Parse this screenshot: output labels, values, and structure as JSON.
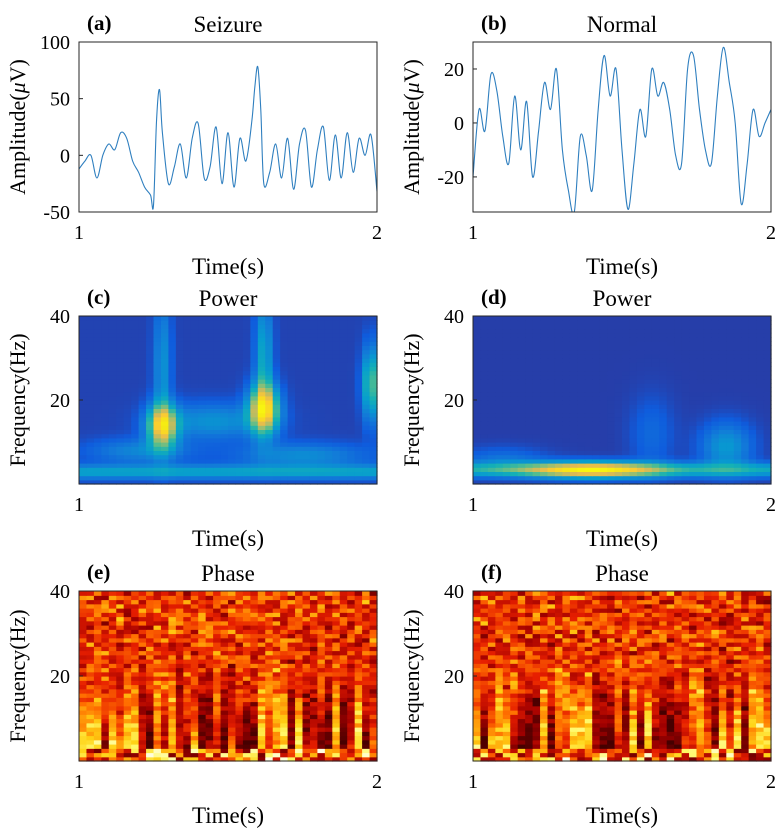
{
  "figure": {
    "panels": [
      {
        "id": "a",
        "letter": "(a)",
        "title": "Seizure",
        "xlabel": "Time(s)",
        "ylabel_prefix": "Amplitude(",
        "ylabel_mu": "μ",
        "ylabel_suffix": "V)",
        "xticks": [
          "1",
          "2"
        ],
        "yticks": [
          "100",
          "50",
          "0",
          "-50"
        ]
      },
      {
        "id": "b",
        "letter": "(b)",
        "title": "Normal",
        "xlabel": "Time(s)",
        "ylabel_prefix": "Amplitude(",
        "ylabel_mu": "μ",
        "ylabel_suffix": "V)",
        "xticks": [
          "1",
          "2"
        ],
        "yticks": [
          "20",
          "0",
          "-20"
        ]
      },
      {
        "id": "c",
        "letter": "(c)",
        "title": "Power",
        "xlabel": "Time(s)",
        "ylabel": "Frequency(Hz)",
        "xticks": [
          "1"
        ],
        "yticks": [
          "40",
          "20"
        ]
      },
      {
        "id": "d",
        "letter": "(d)",
        "title": "Power",
        "xlabel": "Time(s)",
        "ylabel": "Frequency(Hz)",
        "xticks": [
          "1",
          "2"
        ],
        "yticks": [
          "40",
          "20"
        ]
      },
      {
        "id": "e",
        "letter": "(e)",
        "title": "Phase",
        "xlabel": "Time(s)",
        "ylabel": "Frequency(Hz)",
        "xticks": [
          "1",
          "2"
        ],
        "yticks": [
          "40",
          "20"
        ]
      },
      {
        "id": "f",
        "letter": "(f)",
        "title": "Phase",
        "xlabel": "Time(s)",
        "ylabel": "Frequency(Hz)",
        "xticks": [
          "1",
          "2"
        ],
        "yticks": [
          "40",
          "20"
        ]
      }
    ]
  },
  "chart_data": [
    {
      "id": "a",
      "type": "line",
      "title": "Seizure",
      "xlabel": "Time(s)",
      "ylabel": "Amplitude(μV)",
      "xlim": [
        1,
        2
      ],
      "ylim": [
        -50,
        100
      ],
      "line_color": "#2f7fbf",
      "x": [
        1.0,
        1.02,
        1.04,
        1.06,
        1.08,
        1.1,
        1.12,
        1.14,
        1.16,
        1.18,
        1.2,
        1.22,
        1.24,
        1.25,
        1.26,
        1.27,
        1.28,
        1.3,
        1.32,
        1.34,
        1.36,
        1.38,
        1.4,
        1.42,
        1.44,
        1.46,
        1.48,
        1.5,
        1.52,
        1.54,
        1.56,
        1.58,
        1.59,
        1.6,
        1.61,
        1.62,
        1.64,
        1.66,
        1.68,
        1.7,
        1.72,
        1.74,
        1.76,
        1.78,
        1.8,
        1.82,
        1.84,
        1.86,
        1.88,
        1.9,
        1.92,
        1.94,
        1.96,
        1.98,
        2.0
      ],
      "values": [
        -12,
        -5,
        0,
        -20,
        0,
        10,
        5,
        20,
        15,
        -5,
        -15,
        -28,
        -35,
        -44,
        30,
        58,
        20,
        -25,
        -10,
        10,
        -20,
        15,
        28,
        -20,
        -10,
        25,
        -25,
        20,
        -28,
        15,
        -5,
        30,
        60,
        78,
        40,
        -25,
        -15,
        10,
        -20,
        15,
        -30,
        10,
        22,
        -28,
        5,
        25,
        -22,
        18,
        -20,
        20,
        -15,
        15,
        0,
        18,
        -32
      ]
    },
    {
      "id": "b",
      "type": "line",
      "title": "Normal",
      "xlabel": "Time(s)",
      "ylabel": "Amplitude(μV)",
      "xlim": [
        1,
        2
      ],
      "ylim": [
        -33,
        30
      ],
      "line_color": "#2f7fbf",
      "x": [
        1.0,
        1.02,
        1.04,
        1.06,
        1.08,
        1.1,
        1.12,
        1.14,
        1.16,
        1.18,
        1.2,
        1.22,
        1.24,
        1.26,
        1.28,
        1.3,
        1.32,
        1.34,
        1.36,
        1.38,
        1.4,
        1.42,
        1.44,
        1.46,
        1.48,
        1.5,
        1.52,
        1.54,
        1.56,
        1.58,
        1.6,
        1.62,
        1.64,
        1.66,
        1.68,
        1.7,
        1.72,
        1.74,
        1.76,
        1.78,
        1.8,
        1.82,
        1.84,
        1.86,
        1.88,
        1.9,
        1.92,
        1.94,
        1.96,
        1.98,
        2.0
      ],
      "values": [
        -20,
        5,
        -3,
        18,
        12,
        -5,
        -15,
        10,
        -10,
        8,
        -20,
        -3,
        15,
        5,
        20,
        -10,
        -25,
        -33,
        -5,
        -12,
        -25,
        5,
        25,
        10,
        20,
        -10,
        -32,
        -15,
        5,
        -5,
        20,
        10,
        15,
        5,
        -12,
        -15,
        20,
        25,
        5,
        -10,
        -15,
        10,
        28,
        15,
        0,
        -30,
        -15,
        5,
        -5,
        0,
        5
      ]
    },
    {
      "id": "c",
      "type": "heatmap",
      "title": "Power",
      "xlabel": "Time(s)",
      "ylabel": "Frequency(Hz)",
      "xlim": [
        1,
        2
      ],
      "ylim": [
        0,
        40
      ],
      "colormap": "parula",
      "time_bins": 40,
      "freq_bins": 40,
      "background": 0.05,
      "blobs": [
        {
          "t": 1.28,
          "f": 14,
          "dt": 0.035,
          "df": 3.5,
          "amp": 0.7
        },
        {
          "t": 1.62,
          "f": 18,
          "dt": 0.035,
          "df": 4.0,
          "amp": 0.75
        },
        {
          "t": 1.62,
          "f": 30,
          "dt": 0.02,
          "df": 10,
          "amp": 0.3
        },
        {
          "t": 1.28,
          "f": 28,
          "dt": 0.02,
          "df": 12,
          "amp": 0.22
        },
        {
          "t": 1.45,
          "f": 15,
          "dt": 0.12,
          "df": 3,
          "amp": 0.22
        },
        {
          "t": 1.2,
          "f": 8,
          "dt": 0.12,
          "df": 2,
          "amp": 0.18
        },
        {
          "t": 1.75,
          "f": 7,
          "dt": 0.15,
          "df": 2,
          "amp": 0.2
        },
        {
          "t": 1.98,
          "f": 24,
          "dt": 0.02,
          "df": 6,
          "amp": 0.45
        }
      ],
      "bands": [
        {
          "f": 3,
          "df": 1.2,
          "amp": 0.28
        }
      ]
    },
    {
      "id": "d",
      "type": "heatmap",
      "title": "Power",
      "xlabel": "Time(s)",
      "ylabel": "Frequency(Hz)",
      "xlim": [
        1,
        2
      ],
      "ylim": [
        0,
        40
      ],
      "colormap": "parula",
      "time_bins": 40,
      "freq_bins": 40,
      "background": 0.04,
      "blobs": [
        {
          "t": 1.4,
          "f": 3.5,
          "dt": 0.15,
          "df": 1.3,
          "amp": 0.62
        },
        {
          "t": 1.85,
          "f": 9,
          "dt": 0.06,
          "df": 4,
          "amp": 0.25
        },
        {
          "t": 1.1,
          "f": 6,
          "dt": 0.1,
          "df": 2,
          "amp": 0.12
        },
        {
          "t": 1.6,
          "f": 12,
          "dt": 0.05,
          "df": 6,
          "amp": 0.1
        }
      ],
      "bands": [
        {
          "f": 3.5,
          "df": 1.2,
          "amp": 0.32
        }
      ]
    },
    {
      "id": "e",
      "type": "heatmap",
      "title": "Phase",
      "xlabel": "Time(s)",
      "ylabel": "Frequency(Hz)",
      "xlim": [
        1,
        2
      ],
      "ylim": [
        0,
        40
      ],
      "colormap": "hot",
      "time_bins": 40,
      "freq_bins": 40,
      "seed": 7
    },
    {
      "id": "f",
      "type": "heatmap",
      "title": "Phase",
      "xlabel": "Time(s)",
      "ylabel": "Frequency(Hz)",
      "xlim": [
        1,
        2
      ],
      "ylim": [
        0,
        40
      ],
      "colormap": "hot",
      "time_bins": 40,
      "freq_bins": 40,
      "seed": 13
    }
  ]
}
